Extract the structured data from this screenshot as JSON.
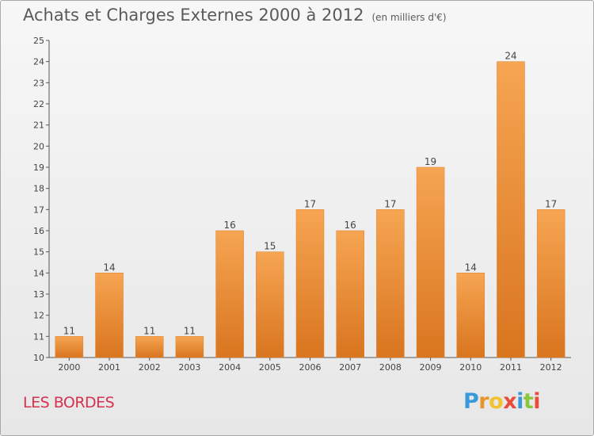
{
  "header": {
    "title": "Achats et Charges Externes 2000 à 2012",
    "unit": "(en milliers d'€)"
  },
  "footer": {
    "place": "LES BORDES",
    "logo": "Proxiti",
    "logo_colors": [
      "#3a9ad9",
      "#e8952b",
      "#f2c230",
      "#e84c3d",
      "#3a9ad9",
      "#8cc63e",
      "#e84c3d"
    ]
  },
  "colors": {
    "bar_light": "#f6a552",
    "bar_dark": "#d9751f",
    "axis": "#555555"
  },
  "chart_data": {
    "type": "bar",
    "categories": [
      "2000",
      "2001",
      "2002",
      "2003",
      "2004",
      "2005",
      "2006",
      "2007",
      "2008",
      "2009",
      "2010",
      "2011",
      "2012"
    ],
    "values": [
      11,
      14,
      11,
      11,
      16,
      15,
      17,
      16,
      17,
      19,
      14,
      24,
      17
    ],
    "title": "Achats et Charges Externes 2000 à 2012",
    "ylabel": "",
    "xlabel": "",
    "ylim": [
      10,
      25
    ],
    "yticks": [
      10,
      11,
      12,
      13,
      14,
      15,
      16,
      17,
      18,
      19,
      20,
      21,
      22,
      23,
      24,
      25
    ],
    "grid": false,
    "legend": "none"
  }
}
